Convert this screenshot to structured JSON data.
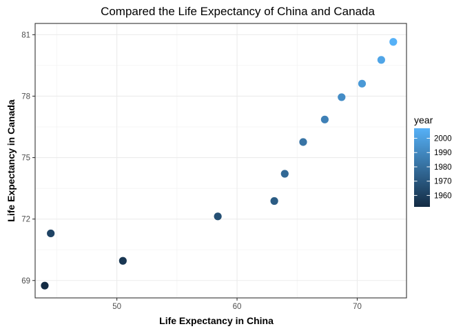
{
  "chart_data": {
    "type": "scatter",
    "title": "Compared the Life Expectancy of China and Canada",
    "xlabel": "Life Expectancy in China",
    "ylabel": "Life Expectancy in Canada",
    "xlim": [
      43.2,
      74.1
    ],
    "ylim": [
      68.15,
      81.55
    ],
    "x_ticks": [
      50,
      60,
      70
    ],
    "y_ticks": [
      69,
      72,
      75,
      78,
      81
    ],
    "x_tick_labels": [
      "50",
      "60",
      "70"
    ],
    "y_tick_labels": [
      "69",
      "72",
      "75",
      "78",
      "81"
    ],
    "grid": true,
    "legend_position": "right",
    "color_scale": {
      "title": "year",
      "min": 1952,
      "max": 2007,
      "low_color": "#132B43",
      "high_color": "#56B1F7",
      "ticks": [
        1960,
        1970,
        1980,
        1990,
        2000
      ],
      "tick_labels": [
        "1960",
        "1970",
        "1980",
        "1990",
        "2000"
      ]
    },
    "points": [
      {
        "year": 1952,
        "x": 44.0,
        "y": 68.75
      },
      {
        "year": 1957,
        "x": 50.5,
        "y": 69.96
      },
      {
        "year": 1962,
        "x": 44.5,
        "y": 71.3
      },
      {
        "year": 1967,
        "x": 58.4,
        "y": 72.13
      },
      {
        "year": 1972,
        "x": 63.1,
        "y": 72.88
      },
      {
        "year": 1977,
        "x": 63.97,
        "y": 74.21
      },
      {
        "year": 1982,
        "x": 65.5,
        "y": 75.76
      },
      {
        "year": 1987,
        "x": 67.3,
        "y": 76.86
      },
      {
        "year": 1992,
        "x": 68.7,
        "y": 77.95
      },
      {
        "year": 1997,
        "x": 70.4,
        "y": 78.61
      },
      {
        "year": 2002,
        "x": 72.0,
        "y": 79.77
      },
      {
        "year": 2007,
        "x": 73.0,
        "y": 80.65
      }
    ]
  }
}
